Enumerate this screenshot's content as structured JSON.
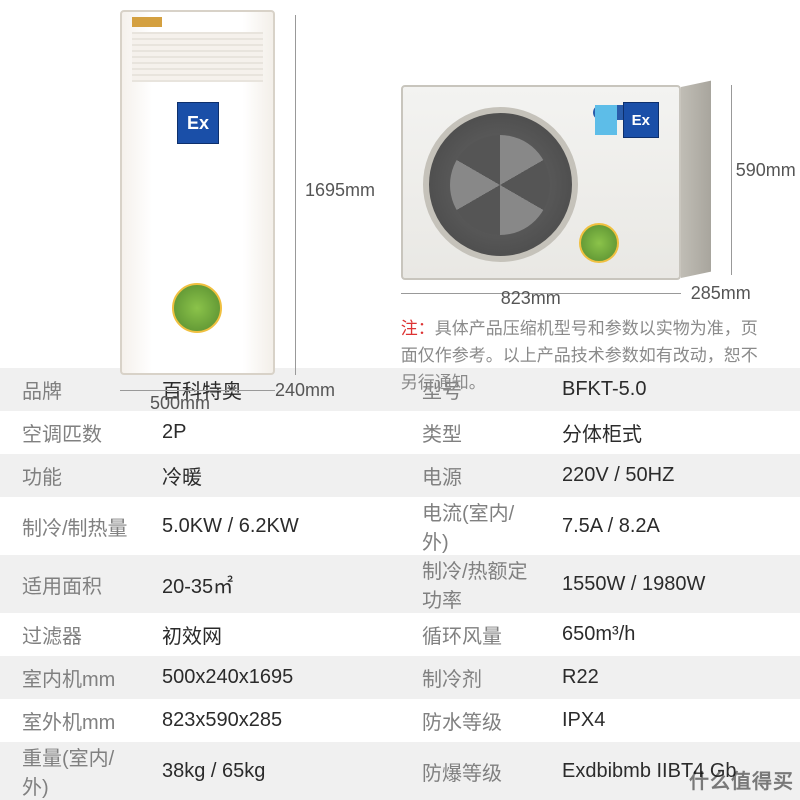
{
  "dimensions": {
    "indoor_height": "1695mm",
    "indoor_width": "500mm",
    "indoor_depth": "240mm",
    "outdoor_width": "823mm",
    "outdoor_height": "590mm",
    "outdoor_depth": "285mm"
  },
  "ex_label": "Ex",
  "note_prefix": "注：",
  "note_body": "具体产品压缩机型号和参数以实物为准，页面仅作参考。以上产品技术参数如有改动，恕不另行通知。",
  "specs": [
    {
      "l1": "品牌",
      "v1": "百科特奥",
      "l2": "型号",
      "v2": "BFKT-5.0"
    },
    {
      "l1": "空调匹数",
      "v1": "2P",
      "l2": "类型",
      "v2": "分体柜式"
    },
    {
      "l1": "功能",
      "v1": "冷暖",
      "l2": "电源",
      "v2": "220V / 50HZ"
    },
    {
      "l1": "制冷/制热量",
      "v1": "5.0KW / 6.2KW",
      "l2": "电流(室内/外)",
      "v2": "7.5A / 8.2A"
    },
    {
      "l1": "适用面积",
      "v1": "20-35㎡",
      "l2": "制冷/热额定功率",
      "v2": "1550W / 1980W"
    },
    {
      "l1": "过滤器",
      "v1": "初效网",
      "l2": "循环风量",
      "v2": "650m³/h"
    },
    {
      "l1": "室内机mm",
      "v1": "500x240x1695",
      "l2": "制冷剂",
      "v2": "R22"
    },
    {
      "l1": "室外机mm",
      "v1": "823x590x285",
      "l2": "防水等级",
      "v2": "IPX4"
    },
    {
      "l1": "重量(室内/外)",
      "v1": "38kg / 65kg",
      "l2": "防爆等级",
      "v2": "Exdbibmb IIBT4 Gb"
    }
  ],
  "watermark": "什么值得买",
  "colors": {
    "row_alt": "#f0f0f0",
    "label": "#808080",
    "value": "#2b2b2b",
    "ex_badge": "#1a4fa8",
    "note": "#8a8a8a",
    "note_red": "#d33"
  }
}
